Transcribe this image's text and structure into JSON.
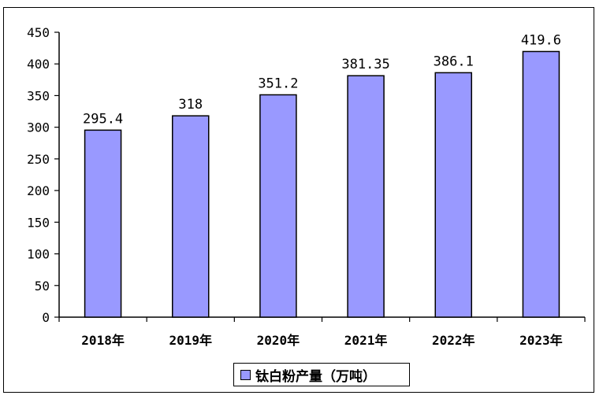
{
  "chart_data": {
    "type": "bar",
    "categories": [
      "2018年",
      "2019年",
      "2020年",
      "2021年",
      "2022年",
      "2023年"
    ],
    "series": [
      {
        "name": "钛白粉产量（万吨）",
        "values": [
          295.4,
          318,
          351.2,
          381.35,
          386.1,
          419.6
        ],
        "labels": [
          "295.4",
          "318",
          "351.2",
          "381.35",
          "386.1",
          "419.6"
        ]
      }
    ],
    "yticks": [
      "0",
      "50",
      "100",
      "150",
      "200",
      "250",
      "300",
      "350",
      "400",
      "450"
    ],
    "ylim": [
      0,
      450
    ],
    "grid": false,
    "legend_position": "bottom",
    "bar_color": "#9999ff",
    "border_color": "#000000"
  }
}
